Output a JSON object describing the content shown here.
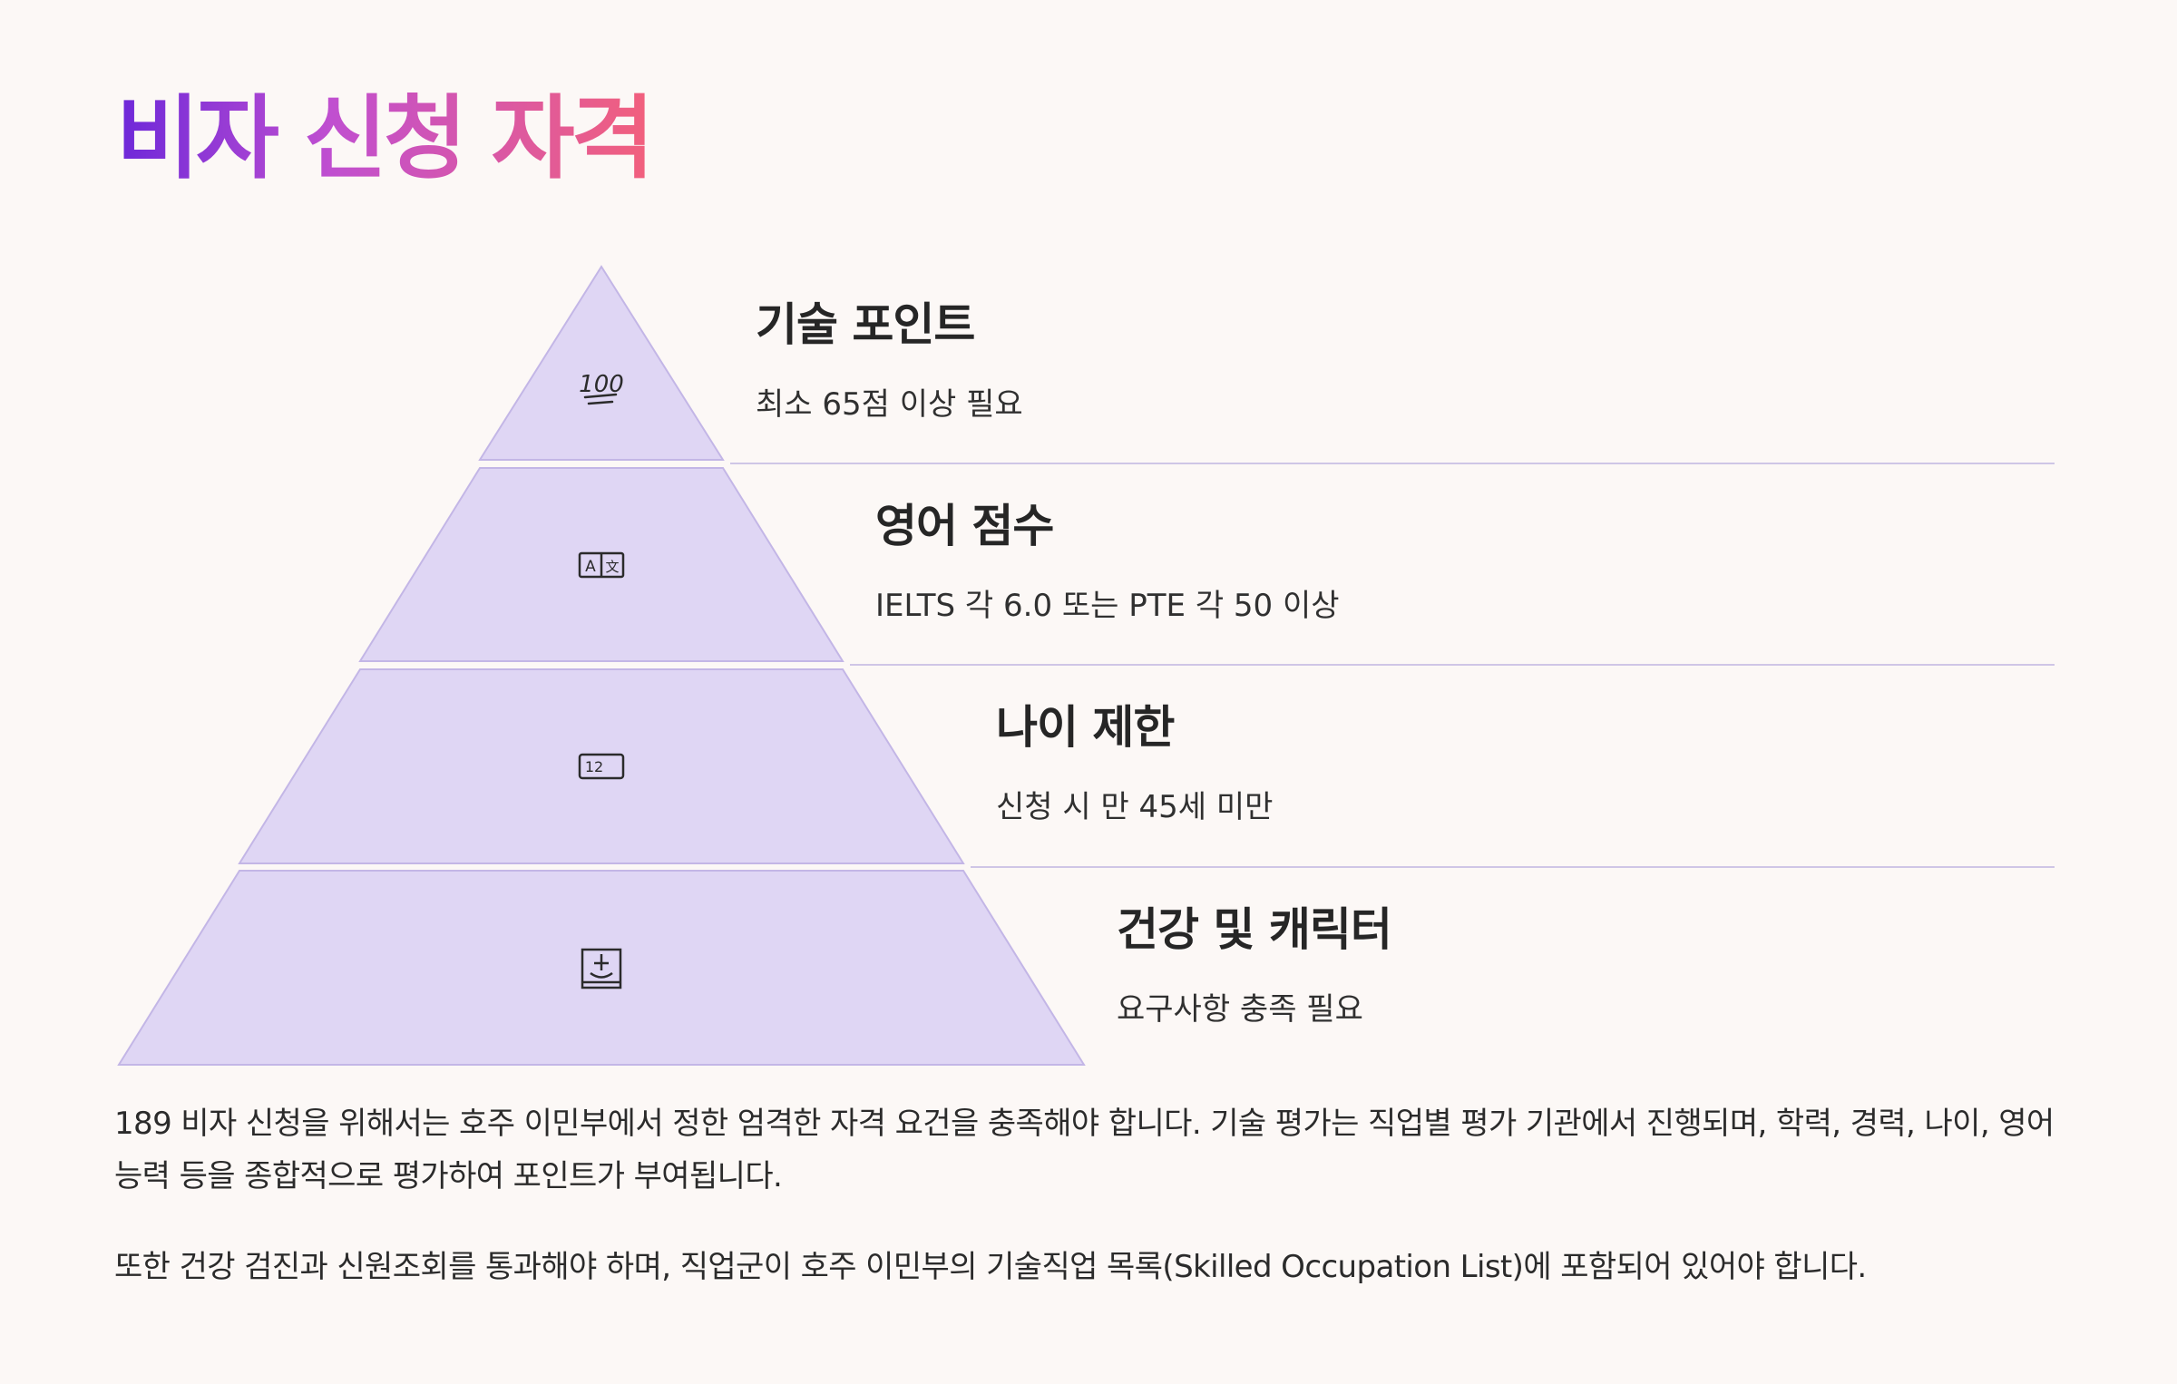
{
  "title": "비자 신청 자격",
  "colors": {
    "pyramid_fill": "#dfd6f4",
    "pyramid_stroke": "#c3b6e6",
    "divider": "#cfc6e6",
    "title_gradient": [
      "#6d28d9",
      "#c04fd0",
      "#f2607c"
    ]
  },
  "levels": [
    {
      "icon": "hundred-points-icon",
      "title": "기술 포인트",
      "description": "최소 65점 이상 필요"
    },
    {
      "icon": "translate-icon",
      "title": "영어 점수",
      "description": "IELTS 각 6.0 또는 PTE 각 50 이상"
    },
    {
      "icon": "numbers-icon",
      "title": "나이 제한",
      "description": "신청 시 만 45세 미만"
    },
    {
      "icon": "health-character-icon",
      "title": "건강 및 캐릭터",
      "description": "요구사항 충족 필요"
    }
  ],
  "paragraphs": [
    "189 비자 신청을 위해서는 호주 이민부에서 정한 엄격한 자격 요건을 충족해야 합니다. 기술 평가는 직업별 평가 기관에서 진행되며, 학력, 경력, 나이, 영어 능력 등을 종합적으로 평가하여 포인트가 부여됩니다.",
    "또한 건강 검진과 신원조회를 통과해야 하며, 직업군이 호주 이민부의 기술직업 목록(Skilled Occupation List)에 포함되어 있어야 합니다."
  ]
}
